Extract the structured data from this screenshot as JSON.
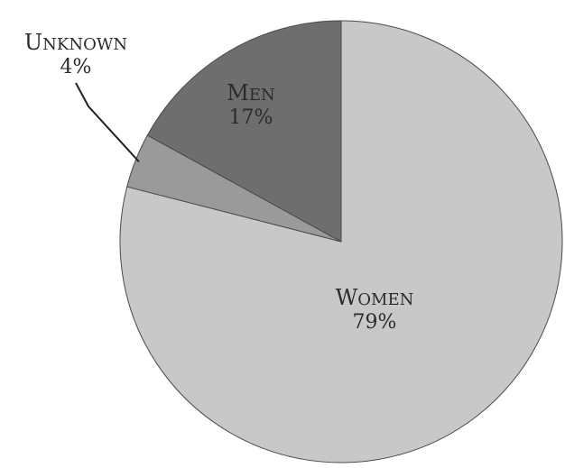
{
  "chart_data": {
    "type": "pie",
    "title": "",
    "slices": [
      {
        "label": "Women",
        "value": 79,
        "display_label": "WOMEN",
        "display_value": "79%",
        "color": "#c8c8c8"
      },
      {
        "label": "Unknown",
        "value": 4,
        "display_label": "UNKNOWN",
        "display_value": "4%",
        "color": "#9a9a9a"
      },
      {
        "label": "Men",
        "value": 17,
        "display_label": "MEN",
        "display_value": "17%",
        "color": "#6e6e6e"
      }
    ],
    "start_angle": "12 o'clock, clockwise",
    "legend": "none (labels on/near slices)"
  }
}
